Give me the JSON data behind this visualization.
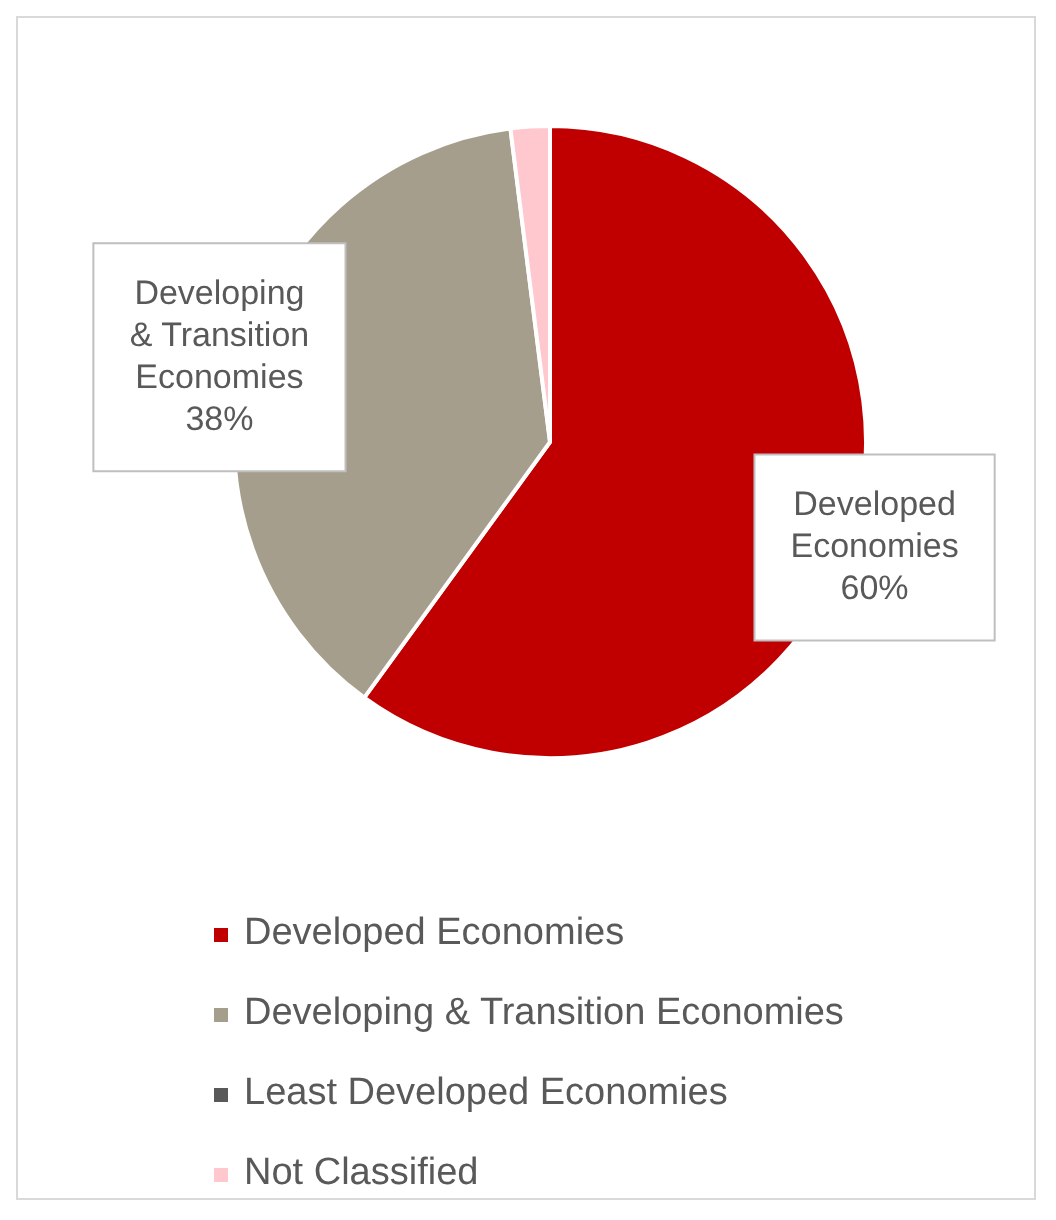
{
  "chart_data": {
    "type": "pie",
    "categories": [
      "Developed Economies",
      "Developing & Transition Economies",
      "Least Developed Economies",
      "Not Classified"
    ],
    "values": [
      60,
      38,
      0,
      2
    ],
    "colors": [
      "#c00000",
      "#a59e8c",
      "#595959",
      "#ffc7ce"
    ],
    "value_labels": [
      "60%",
      "38%",
      null,
      null
    ],
    "legend": "bottom"
  }
}
